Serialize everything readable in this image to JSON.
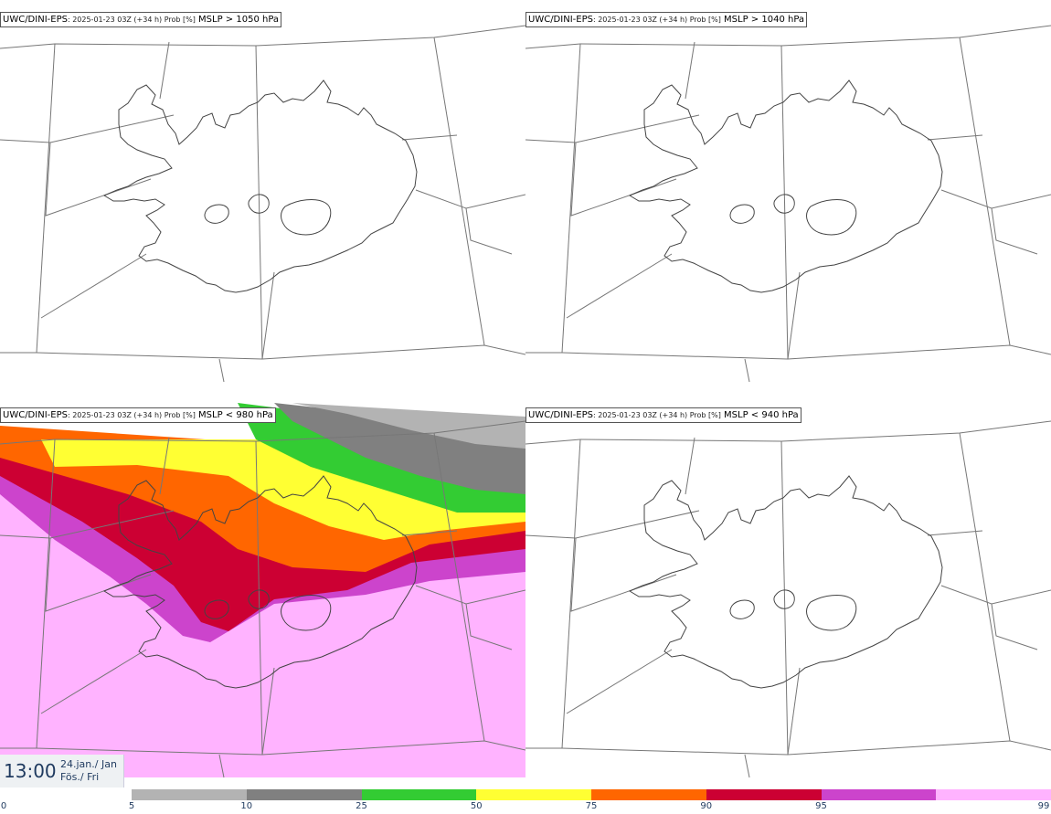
{
  "panels": [
    {
      "model": "UWC/DINI-EPS",
      "meta": ": 2025-01-23 03Z (+34 h) Prob [%]",
      "threshold": " MSLP > 1050 hPa",
      "filled": false
    },
    {
      "model": "UWC/DINI-EPS",
      "meta": ": 2025-01-23 03Z (+34 h) Prob [%]",
      "threshold": " MSLP > 1040 hPa",
      "filled": false
    },
    {
      "model": "UWC/DINI-EPS",
      "meta": ": 2025-01-23 03Z (+34 h) Prob [%]",
      "threshold": " MSLP < 980 hPa",
      "filled": true
    },
    {
      "model": "UWC/DINI-EPS",
      "meta": ": 2025-01-23 03Z (+34 h) Prob [%]",
      "threshold": " MSLP < 940 hPa",
      "filled": false
    }
  ],
  "valid_time": {
    "time": "13:00",
    "date_line1": "24.jan./ Jan",
    "date_line2": "Fös./ Fri"
  },
  "colorbar": {
    "ticks": [
      "0",
      "5",
      "10",
      "25",
      "50",
      "75",
      "90",
      "95",
      "99"
    ],
    "colors": [
      "#b3b3b3",
      "#808080",
      "#33cc33",
      "#ffff33",
      "#ff6600",
      "#cc0033",
      "#cc44cc",
      "#ffb3ff"
    ]
  }
}
